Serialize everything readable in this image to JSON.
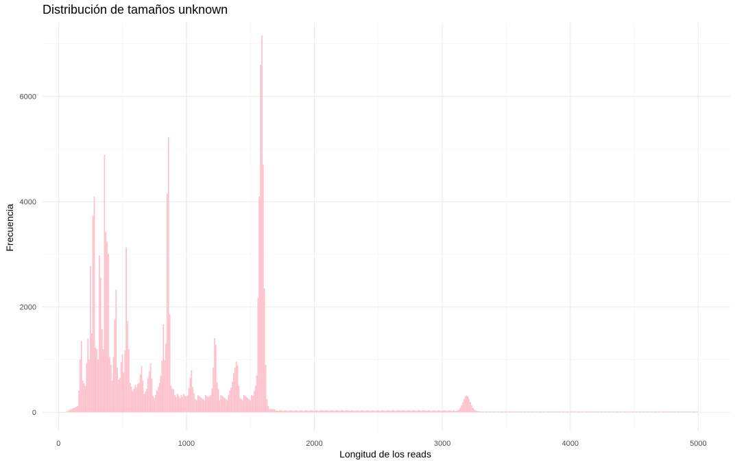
{
  "chart_data": {
    "type": "bar",
    "title": "Distribución de tamaños unknown",
    "xlabel": "Longitud de los reads",
    "ylabel": "Frecuencia",
    "xlim": [
      -125,
      5250
    ],
    "ylim": [
      -350,
      7400
    ],
    "x_ticks": [
      0,
      1000,
      2000,
      3000,
      4000,
      5000
    ],
    "x_tick_labels": [
      "0",
      "1000",
      "2000",
      "3000",
      "4000",
      "5000"
    ],
    "y_ticks": [
      0,
      2000,
      4000,
      6000
    ],
    "y_tick_labels": [
      "0",
      "2000",
      "4000",
      "6000"
    ],
    "grid": true,
    "bar_color": "#FFC0CB",
    "bins": {
      "start": 0,
      "width": 10,
      "count": 500,
      "peaks": [
        [
          170,
          1000
        ],
        [
          180,
          1350
        ],
        [
          190,
          600
        ],
        [
          200,
          550
        ],
        [
          210,
          500
        ],
        [
          220,
          930
        ],
        [
          230,
          1400
        ],
        [
          240,
          1000
        ],
        [
          250,
          2780
        ],
        [
          260,
          1500
        ],
        [
          270,
          3730
        ],
        [
          280,
          4100
        ],
        [
          290,
          1230
        ],
        [
          300,
          1200
        ],
        [
          310,
          1000
        ],
        [
          320,
          2980
        ],
        [
          330,
          2560
        ],
        [
          340,
          1580
        ],
        [
          350,
          1200
        ],
        [
          360,
          4890
        ],
        [
          370,
          3420
        ],
        [
          380,
          3240
        ],
        [
          390,
          3010
        ],
        [
          400,
          1050
        ],
        [
          410,
          900
        ],
        [
          420,
          600
        ],
        [
          430,
          1050
        ],
        [
          440,
          1750
        ],
        [
          450,
          2330
        ],
        [
          460,
          850
        ],
        [
          470,
          620
        ],
        [
          480,
          650
        ],
        [
          490,
          950
        ],
        [
          500,
          1100
        ],
        [
          510,
          750
        ],
        [
          520,
          1180
        ],
        [
          530,
          3130
        ],
        [
          540,
          1730
        ],
        [
          550,
          1200
        ],
        [
          560,
          560
        ],
        [
          570,
          480
        ],
        [
          580,
          400
        ],
        [
          590,
          450
        ],
        [
          600,
          520
        ],
        [
          610,
          480
        ],
        [
          620,
          540
        ],
        [
          630,
          560
        ],
        [
          640,
          720
        ],
        [
          650,
          880
        ],
        [
          660,
          600
        ],
        [
          700,
          650
        ],
        [
          710,
          780
        ],
        [
          720,
          930
        ],
        [
          730,
          640
        ],
        [
          770,
          420
        ],
        [
          780,
          480
        ],
        [
          790,
          560
        ],
        [
          800,
          700
        ],
        [
          810,
          980
        ],
        [
          820,
          1670
        ],
        [
          830,
          990
        ],
        [
          840,
          1310
        ],
        [
          850,
          4150
        ],
        [
          860,
          5230
        ],
        [
          870,
          1860
        ],
        [
          880,
          510
        ],
        [
          890,
          450
        ],
        [
          900,
          440
        ],
        [
          1000,
          300
        ],
        [
          1010,
          320
        ],
        [
          1020,
          460
        ],
        [
          1030,
          650
        ],
        [
          1040,
          800
        ],
        [
          1050,
          480
        ],
        [
          1060,
          360
        ],
        [
          1180,
          300
        ],
        [
          1190,
          330
        ],
        [
          1200,
          460
        ],
        [
          1210,
          850
        ],
        [
          1220,
          1410
        ],
        [
          1230,
          1280
        ],
        [
          1240,
          570
        ],
        [
          1250,
          440
        ],
        [
          1340,
          420
        ],
        [
          1350,
          470
        ],
        [
          1360,
          580
        ],
        [
          1370,
          740
        ],
        [
          1380,
          850
        ],
        [
          1390,
          960
        ],
        [
          1400,
          890
        ],
        [
          1410,
          500
        ],
        [
          1530,
          400
        ],
        [
          1540,
          500
        ],
        [
          1550,
          700
        ],
        [
          1560,
          2170
        ],
        [
          1570,
          4100
        ],
        [
          1580,
          6600
        ],
        [
          1590,
          7160
        ],
        [
          1600,
          4700
        ],
        [
          1610,
          2350
        ],
        [
          1620,
          900
        ],
        [
          1630,
          250
        ],
        [
          1640,
          120
        ]
      ]
    }
  }
}
